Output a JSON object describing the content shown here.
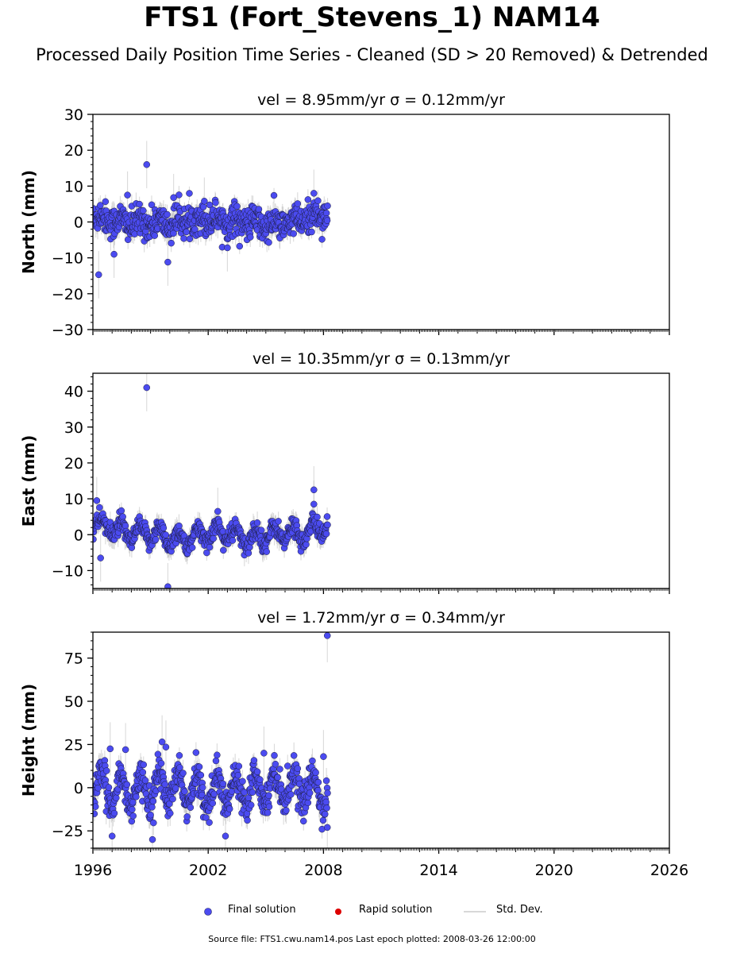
{
  "title": "FTS1 (Fort_Stevens_1) NAM14",
  "subtitle": "Processed Daily Position Time Series - Cleaned (SD > 20 Removed) & Detrended",
  "source": "Source file: FTS1.cwu.nam14.pos  Last epoch plotted: 2008-03-26 12:00:00",
  "legend": [
    {
      "label": "Final solution",
      "color": "#4b4bf0"
    },
    {
      "label": "Rapid solution",
      "color": "#dd0000"
    },
    {
      "label": "Std. Dev.",
      "color": "#cccccc"
    }
  ],
  "colors": {
    "final": "#4b4bf0",
    "rapid": "#dd0000",
    "stddev": "#bbbbbb"
  },
  "chart_data": [
    {
      "type": "scatter",
      "title": "vel = 8.95mm/yr   σ = 0.12mm/yr",
      "ylabel": "North (mm)",
      "xlim": [
        1996,
        2026
      ],
      "ylim": [
        -30,
        30
      ],
      "yticks": [
        -30,
        -20,
        -10,
        0,
        10,
        20,
        30
      ],
      "data_range": [
        1996.0,
        2008.23
      ],
      "noise_sd": 2.2,
      "errbar_sd": 3.0,
      "seasonal_amp": 1.0,
      "trend_pts": [
        [
          1996.2,
          1.5
        ],
        [
          1997.0,
          0.5
        ],
        [
          1998.0,
          -0.5
        ],
        [
          1999.0,
          0.0
        ],
        [
          2000.0,
          -0.5
        ],
        [
          2001.0,
          0.5
        ],
        [
          2002.0,
          1.0
        ],
        [
          2003.0,
          0.5
        ],
        [
          2004.0,
          0.0
        ],
        [
          2005.0,
          -1.0
        ],
        [
          2006.0,
          -0.5
        ],
        [
          2007.0,
          0.5
        ],
        [
          2008.2,
          3.0
        ]
      ],
      "outliers": [
        [
          1996.3,
          -14.7
        ],
        [
          1997.1,
          -9.0
        ],
        [
          1997.8,
          7.5
        ],
        [
          1998.8,
          16.0
        ],
        [
          1999.9,
          -11.2
        ],
        [
          2000.2,
          6.8
        ],
        [
          2001.8,
          5.8
        ],
        [
          2003.0,
          -7.2
        ],
        [
          2007.5,
          8.0
        ]
      ]
    },
    {
      "type": "scatter",
      "title": "vel = 10.35mm/yr   σ = 0.13mm/yr",
      "ylabel": "East (mm)",
      "xlim": [
        1996,
        2026
      ],
      "ylim": [
        -15,
        45
      ],
      "yticks": [
        -10,
        0,
        10,
        20,
        30,
        40
      ],
      "data_range": [
        1996.0,
        2008.23
      ],
      "noise_sd": 1.3,
      "errbar_sd": 3.0,
      "seasonal_amp": 2.2,
      "trend_pts": [
        [
          1996.1,
          3.0
        ],
        [
          1997.0,
          2.0
        ],
        [
          1998.0,
          0.0
        ],
        [
          1999.0,
          0.5
        ],
        [
          2000.0,
          -1.0
        ],
        [
          2001.0,
          -1.5
        ],
        [
          2002.0,
          0.5
        ],
        [
          2003.0,
          0.5
        ],
        [
          2004.0,
          -1.5
        ],
        [
          2005.0,
          0.0
        ],
        [
          2006.0,
          0.5
        ],
        [
          2007.0,
          0.0
        ],
        [
          2008.2,
          3.0
        ]
      ],
      "outliers": [
        [
          1996.2,
          9.5
        ],
        [
          1996.4,
          -6.5
        ],
        [
          1998.8,
          41.0
        ],
        [
          1999.9,
          -14.5
        ],
        [
          2002.5,
          6.5
        ],
        [
          2007.5,
          12.5
        ],
        [
          2007.5,
          8.5
        ]
      ]
    },
    {
      "type": "scatter",
      "title": "vel = 1.72mm/yr   σ = 0.34mm/yr",
      "ylabel": "Height (mm)",
      "xlim": [
        1996,
        2026
      ],
      "ylim": [
        -35,
        90
      ],
      "yticks": [
        -25,
        0,
        25,
        50,
        75
      ],
      "data_range": [
        1996.0,
        2008.23
      ],
      "noise_sd": 4.5,
      "errbar_sd": 7.0,
      "seasonal_amp": 9.0,
      "trend_pts": [
        [
          1996.0,
          0.0
        ],
        [
          1998.0,
          -2.0
        ],
        [
          2000.0,
          0.0
        ],
        [
          2002.0,
          -3.0
        ],
        [
          2004.0,
          0.0
        ],
        [
          2006.0,
          1.0
        ],
        [
          2008.2,
          -2.0
        ]
      ],
      "outliers": [
        [
          1996.9,
          22.5
        ],
        [
          1997.0,
          -28.0
        ],
        [
          1997.7,
          22.0
        ],
        [
          1999.1,
          -30.0
        ],
        [
          1999.6,
          26.5
        ],
        [
          1999.8,
          23.5
        ],
        [
          2002.9,
          -28.0
        ],
        [
          2004.9,
          20.0
        ],
        [
          2008.0,
          18.0
        ],
        [
          2008.2,
          88.0
        ],
        [
          2008.2,
          -23.0
        ]
      ]
    }
  ],
  "xticks": [
    1996,
    2002,
    2008,
    2014,
    2020,
    2026
  ]
}
